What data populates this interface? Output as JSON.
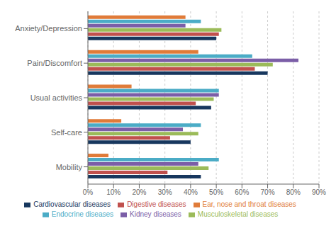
{
  "chart_data": {
    "type": "bar",
    "orientation": "horizontal",
    "categories": [
      "Mobility",
      "Self-care",
      "Usual activities",
      "Pain/Discomfort",
      "Anxiety/Depression"
    ],
    "series": [
      {
        "name": "Ear, nose and throat diseases",
        "color": "#E07B39",
        "values": [
          8,
          13,
          17,
          43,
          38
        ]
      },
      {
        "name": "Endocrine diseases",
        "color": "#4BACC6",
        "values": [
          51,
          44,
          51,
          64,
          44
        ]
      },
      {
        "name": "Kidney diseases",
        "color": "#7B5EA7",
        "values": [
          43,
          37,
          51,
          82,
          38
        ]
      },
      {
        "name": "Musculoskeletal diseases",
        "color": "#9BBB59",
        "values": [
          47,
          43,
          49,
          72,
          52
        ]
      },
      {
        "name": "Digestive diseases",
        "color": "#C0504D",
        "values": [
          31,
          32,
          42,
          65,
          51
        ]
      },
      {
        "name": "Cardiovascular diseases",
        "color": "#17375E",
        "values": [
          44,
          40,
          48,
          70,
          50
        ]
      }
    ],
    "xlim": [
      0,
      90
    ],
    "xticks": [
      {
        "value": 0,
        "label": "0%"
      },
      {
        "value": 10,
        "label": "10%"
      },
      {
        "value": 20,
        "label": "20%"
      },
      {
        "value": 30,
        "label": "30%"
      },
      {
        "value": 40,
        "label": "40%"
      },
      {
        "value": 50,
        "label": "50%"
      },
      {
        "value": 60,
        "label": "60%"
      },
      {
        "value": 70,
        "label": "70%"
      },
      {
        "value": 80,
        "label": "80%"
      },
      {
        "value": 90,
        "label": "90%"
      }
    ],
    "grid": true,
    "legend": "bottom"
  }
}
